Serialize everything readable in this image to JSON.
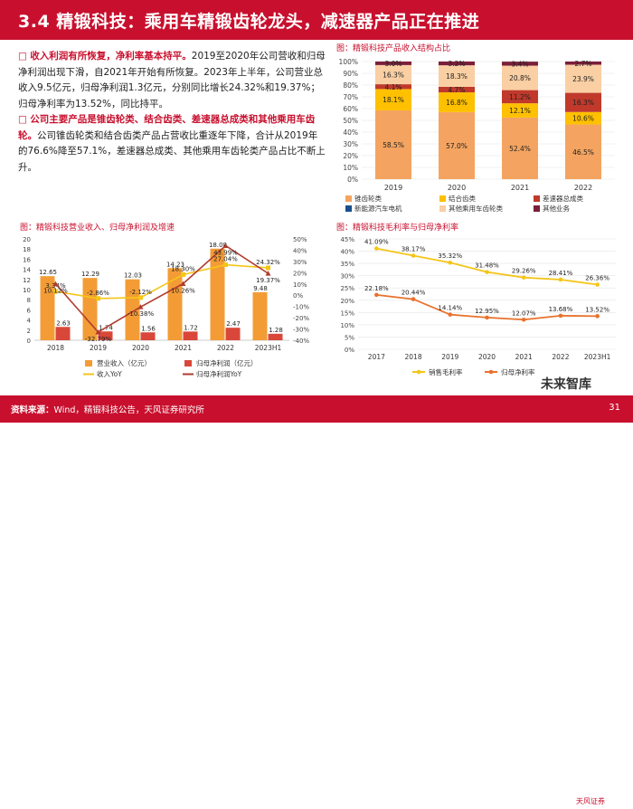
{
  "header": {
    "title": "3.4 精锻科技：乘用车精锻齿轮龙头，减速器产品正在推进"
  },
  "text": {
    "p1_bullet": "□",
    "p1_head": "收入利润有所恢复，净利率基本持平。",
    "p1_body": "2019至2020年公司营收和归母净利润出现下滑，自2021年开始有所恢复。2023年上半年，公司营业总收入9.5亿元，归母净利润1.3亿元，分别同比增长24.32%和19.37%；归母净利率为13.52%，同比持平。",
    "p2_bullet": "□",
    "p2_head": "公司主要产品是锥齿轮类、结合齿类、差速器总成类和其他乘用车齿轮。",
    "p2_body": "公司锥齿轮类和结合齿类产品占营收比重逐年下降，合计从2019年的76.6%降至57.1%，差速器总成类、其他乘用车齿轮类产品占比不断上升。"
  },
  "figures": {
    "structure_title": "图：精锻科技产品收入结构占比",
    "revenue_title": "图：精锻科技营业收入、归母净利润及增速",
    "margin_title": "图：精锻科技毛利率与归母净利率"
  },
  "chart_data": [
    {
      "id": "structure",
      "type": "bar",
      "title": "图：精锻科技产品收入结构占比",
      "categories": [
        "2019",
        "2020",
        "2021",
        "2022"
      ],
      "ylim": [
        0,
        100
      ],
      "yticks": [
        "0%",
        "10%",
        "20%",
        "30%",
        "40%",
        "50%",
        "60%",
        "70%",
        "80%",
        "90%",
        "100%"
      ],
      "series": [
        {
          "name": "锥齿轮类",
          "color": "#f4a460",
          "values": [
            58.5,
            57.0,
            52.4,
            46.5
          ],
          "labels": [
            "58.5%",
            "57.0%",
            "52.4%",
            "46.5%"
          ]
        },
        {
          "name": "结合齿类",
          "color": "#ffc000",
          "values": [
            18.1,
            16.8,
            12.1,
            10.6
          ],
          "labels": [
            "18.1%",
            "16.8%",
            "12.1%",
            "10.6%"
          ]
        },
        {
          "name": "差速器总成类",
          "color": "#c0392b",
          "values": [
            4.1,
            4.7,
            11.2,
            16.3
          ],
          "labels": [
            "4.1%",
            "4.7%",
            "11.2%",
            "16.3%"
          ]
        },
        {
          "name": "其他乘用车齿轮类",
          "color": "#f9cfa3",
          "values": [
            16.3,
            18.3,
            20.8,
            23.9
          ],
          "labels": [
            "16.3%",
            "18.3%",
            "20.8%",
            "23.9%"
          ]
        },
        {
          "name": "新能源汽车电机",
          "color": "#1a4f8b",
          "values": [
            0,
            0,
            0,
            0
          ],
          "labels": [
            "",
            "",
            "",
            ""
          ]
        },
        {
          "name": "其他业务",
          "color": "#7b1f3a",
          "values": [
            3.0,
            3.2,
            3.4,
            2.7
          ],
          "labels": [
            "3.0%",
            "3.2%",
            "3.4%",
            "2.7%"
          ]
        }
      ],
      "legend": [
        "锥齿轮类",
        "结合齿类",
        "差速器总成类",
        "新能源汽车电机",
        "其他乘用车齿轮类",
        "其他业务"
      ]
    },
    {
      "id": "revenue",
      "type": "bar",
      "title": "图：精锻科技营业收入、归母净利润及增速",
      "categories": [
        "2018",
        "2019",
        "2020",
        "2021",
        "2022",
        "2023H1"
      ],
      "ylim_left": [
        0,
        20
      ],
      "yticks_left": [
        "0",
        "2",
        "4",
        "6",
        "8",
        "10",
        "12",
        "14",
        "16",
        "18",
        "20"
      ],
      "ylim_right": [
        -40,
        50
      ],
      "yticks_right": [
        "-40%",
        "-30%",
        "-20%",
        "-10%",
        "0%",
        "10%",
        "20%",
        "30%",
        "40%",
        "50%"
      ],
      "series": [
        {
          "name": "营业收入（亿元）",
          "kind": "bar",
          "axis": "left",
          "color": "#f39c35",
          "values": [
            12.65,
            12.29,
            12.03,
            14.23,
            18.08,
            9.48
          ],
          "labels": [
            "12.65",
            "12.29",
            "12.03",
            "14.23",
            "18.08",
            "9.48"
          ]
        },
        {
          "name": "归母净利润（亿元）",
          "kind": "bar",
          "axis": "left",
          "color": "#d9473a",
          "values": [
            2.63,
            1.74,
            1.56,
            1.72,
            2.47,
            1.28
          ],
          "labels": [
            "2.63",
            "1.74",
            "1.56",
            "1.72",
            "2.47",
            "1.28"
          ]
        },
        {
          "name": "收入YoY",
          "kind": "line",
          "axis": "right",
          "color": "#f5c518",
          "values": [
            3.34,
            -2.86,
            -2.12,
            18.3,
            27.04,
            24.32
          ],
          "labels": [
            "3.34%",
            "-2.86%",
            "-2.12%",
            "18.30%",
            "27.04%",
            "24.32%"
          ]
        },
        {
          "name": "归母净利润YoY",
          "kind": "line",
          "axis": "right",
          "color": "#b03a2e",
          "values": [
            10.12,
            -32.79,
            -10.38,
            10.26,
            43.99,
            19.37
          ],
          "labels": [
            "10.12%",
            "-32.79%",
            "-10.38%",
            "10.26%",
            "43.99%",
            "19.37%"
          ]
        }
      ],
      "legend": [
        "营业收入（亿元）",
        "归母净利润（亿元）",
        "收入YoY",
        "归母净利润YoY"
      ]
    },
    {
      "id": "margin",
      "type": "line",
      "title": "图：精锻科技毛利率与归母净利率",
      "categories": [
        "2017",
        "2018",
        "2019",
        "2020",
        "2021",
        "2022",
        "2023H1"
      ],
      "ylim": [
        0,
        45
      ],
      "yticks": [
        "0%",
        "5%",
        "10%",
        "15%",
        "20%",
        "25%",
        "30%",
        "35%",
        "40%",
        "45%"
      ],
      "series": [
        {
          "name": "销售毛利率",
          "color": "#f5c518",
          "values": [
            41.09,
            38.17,
            35.32,
            31.48,
            29.26,
            28.41,
            26.36
          ],
          "labels": [
            "41.09%",
            "38.17%",
            "35.32%",
            "31.48%",
            "29.26%",
            "28.41%",
            "26.36%"
          ]
        },
        {
          "name": "归母净利率",
          "color": "#e8712b",
          "values": [
            22.18,
            20.44,
            14.14,
            12.95,
            12.07,
            13.68,
            13.52
          ],
          "labels": [
            "22.18%",
            "20.44%",
            "14.14%",
            "12.95%",
            "12.07%",
            "13.68%",
            "13.52%"
          ]
        }
      ],
      "legend": [
        "销售毛利率",
        "归母净利率"
      ]
    }
  ],
  "footer": {
    "source_label": "资料来源：",
    "source_text": "Wind，精锻科技公告，天风证券研究所",
    "page": "31"
  },
  "watermark": "未来智库",
  "logo": "天风证券"
}
